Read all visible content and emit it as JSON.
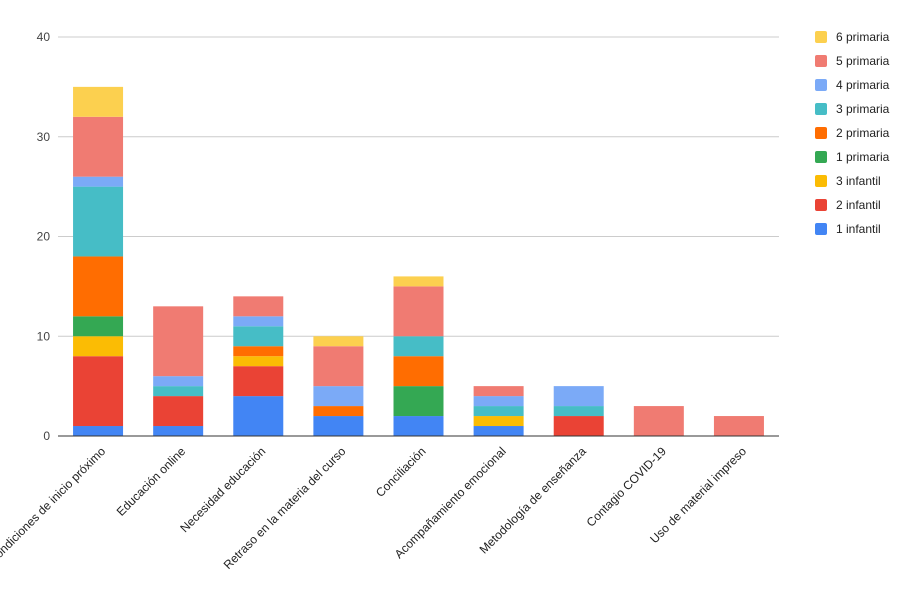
{
  "chart_data": {
    "type": "bar",
    "stacked": true,
    "title": "",
    "xlabel": "",
    "ylabel": "",
    "ylim": [
      0,
      40
    ],
    "yticks": [
      0,
      10,
      20,
      30,
      40
    ],
    "grid": true,
    "legend_position": "right",
    "categories": [
      "Condiciones de inicio próximo",
      "Educación online",
      "Necesidad educación",
      "Retraso en la materia del curso",
      "Conciliación",
      "Acompañamiento emocional",
      "Metodología de enseñanza",
      "Contagio COVID-19",
      "Uso de material impreso"
    ],
    "series": [
      {
        "name": "1 infantil",
        "color": "#4285F4",
        "values": [
          1,
          1,
          4,
          2,
          2,
          1,
          0,
          0,
          0
        ]
      },
      {
        "name": "2 infantil",
        "color": "#EA4335",
        "values": [
          7,
          3,
          3,
          0,
          0,
          0,
          2,
          0,
          0
        ]
      },
      {
        "name": "3 infantil",
        "color": "#FBBC04",
        "values": [
          2,
          0,
          1,
          0,
          0,
          1,
          0,
          0,
          0
        ]
      },
      {
        "name": "1 primaria",
        "color": "#34A853",
        "values": [
          2,
          0,
          0,
          0,
          3,
          0,
          0,
          0,
          0
        ]
      },
      {
        "name": "2 primaria",
        "color": "#FF6D01",
        "values": [
          6,
          0,
          1,
          1,
          3,
          0,
          0,
          0,
          0
        ]
      },
      {
        "name": "3 primaria",
        "color": "#46BDC6",
        "values": [
          7,
          1,
          2,
          0,
          2,
          1,
          1,
          0,
          0
        ]
      },
      {
        "name": "4 primaria",
        "color": "#7BAAF7",
        "values": [
          1,
          1,
          1,
          2,
          0,
          1,
          2,
          0,
          0
        ]
      },
      {
        "name": "5 primaria",
        "color": "#F07B72",
        "values": [
          6,
          7,
          2,
          4,
          5,
          1,
          0,
          3,
          2
        ]
      },
      {
        "name": "6 primaria",
        "color": "#FCD04F",
        "values": [
          3,
          0,
          0,
          1,
          1,
          0,
          0,
          0,
          0
        ]
      }
    ]
  }
}
